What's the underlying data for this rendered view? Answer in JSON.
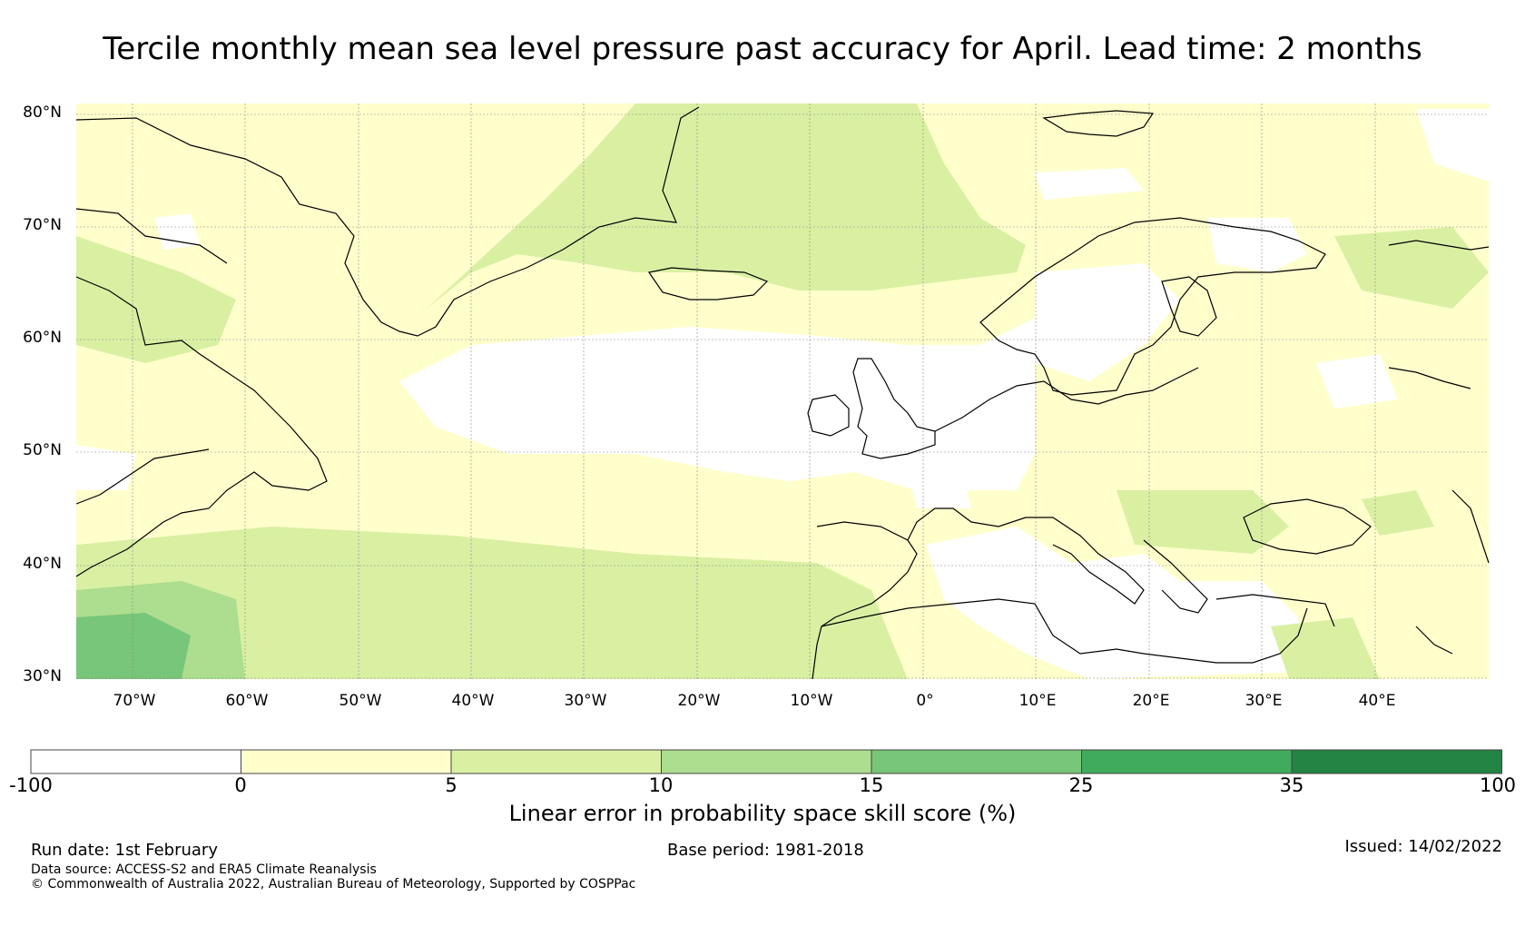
{
  "title": "Tercile monthly mean sea level pressure past accuracy for April. Lead time: 2 months",
  "map": {
    "lat_labels": [
      "80°N",
      "70°N",
      "60°N",
      "50°N",
      "40°N",
      "30°N"
    ],
    "lon_labels": [
      "70°W",
      "60°W",
      "50°W",
      "40°W",
      "30°W",
      "20°W",
      "10°W",
      "0°",
      "10°E",
      "20°E",
      "30°E",
      "40°E"
    ],
    "lat_range": [
      30,
      81
    ],
    "lon_range": [
      -75,
      50
    ]
  },
  "colorbar": {
    "label": "Linear error in probability space skill score (%)",
    "ticks": [
      "-100",
      "0",
      "5",
      "10",
      "15",
      "25",
      "35",
      "100"
    ],
    "bins": [
      {
        "range": "-100 to 0",
        "color": "#ffffff"
      },
      {
        "range": "0 to 5",
        "color": "#ffffcc"
      },
      {
        "range": "5 to 10",
        "color": "#d9f0a3"
      },
      {
        "range": "10 to 15",
        "color": "#addd8e"
      },
      {
        "range": "15 to 25",
        "color": "#78c679"
      },
      {
        "range": "25 to 35",
        "color": "#41ab5d"
      },
      {
        "range": "35 to 100",
        "color": "#238443"
      }
    ]
  },
  "footer": {
    "run_date": "Run date: 1st February",
    "base_period": "Base period: 1981-2018",
    "issued": "Issued: 14/02/2022",
    "source": "Data source: ACCESS-S2 and ERA5 Climate Reanalysis",
    "copyright": "© Commonwealth of Australia 2022, Australian Bureau of Meteorology, Supported by COSPPac"
  }
}
